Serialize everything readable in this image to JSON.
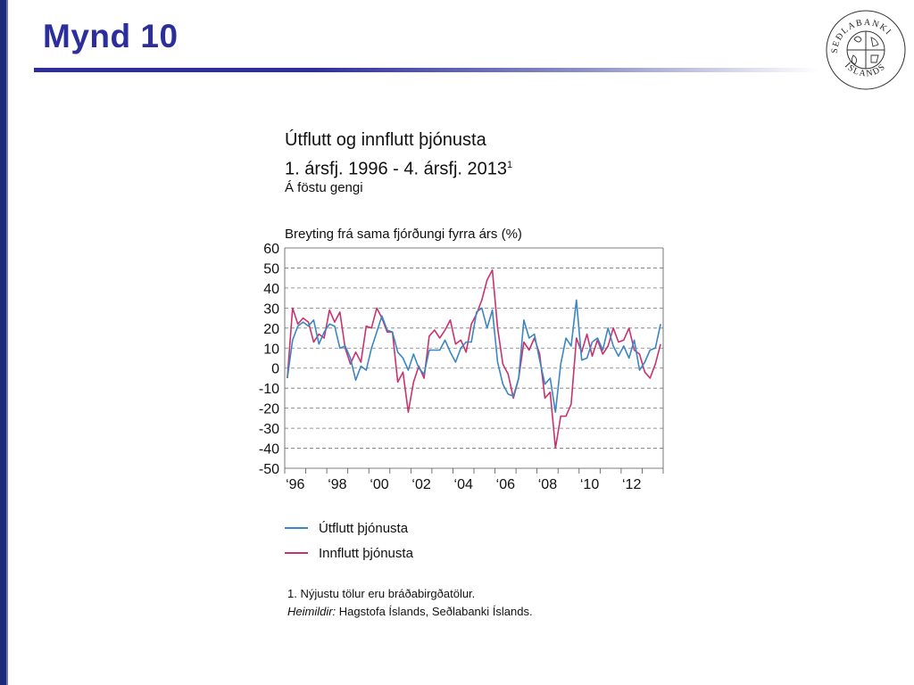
{
  "slide": {
    "title": "Mynd 10",
    "logo_text": "SEÐLABANKI ÍSLANDS"
  },
  "chart_data": {
    "type": "line",
    "title": "Útflutt og innflutt þjónusta",
    "title_line2": "1. ársfj. 1996 - 4. ársfj. 2013",
    "title_line2_sup": "1",
    "subtitle": "Á föstu gengi",
    "ylabel": "Breyting frá sama fjórðungi fyrra árs (%)",
    "ylim": [
      -50,
      60
    ],
    "yticks": [
      60,
      50,
      40,
      30,
      20,
      10,
      0,
      -10,
      -20,
      -30,
      -40,
      -50
    ],
    "x_tick_labels": [
      "‘96",
      "‘98",
      "‘00",
      "‘02",
      "‘04",
      "‘06",
      "‘08",
      "‘10",
      "‘12"
    ],
    "x_tick_years": [
      1996,
      1998,
      2000,
      2002,
      2004,
      2006,
      2008,
      2010,
      2012
    ],
    "x_start_year": 1996,
    "x_end_year": 2014,
    "grid": "dashed-horizontal",
    "legend_position": "below",
    "series": [
      {
        "name": "Útflutt þjónusta",
        "color": "#3b86c4",
        "values": [
          -5,
          14,
          21,
          23,
          21,
          24,
          12,
          18,
          22,
          21,
          10,
          11,
          5,
          -6,
          1,
          -1,
          10,
          18,
          26,
          19,
          18,
          8,
          5,
          -1,
          7,
          0,
          -3,
          9,
          9,
          9,
          14,
          8,
          3,
          10,
          13,
          13,
          28,
          30,
          20,
          29,
          3,
          -8,
          -13,
          -14,
          -5,
          24,
          15,
          17,
          4,
          -8,
          -5,
          -22,
          2,
          15,
          11,
          34,
          4,
          5,
          13,
          15,
          9,
          20,
          11,
          6,
          11,
          5,
          14,
          -1,
          3,
          9,
          10,
          22
        ]
      },
      {
        "name": "Innflutt þjónusta",
        "color": "#c8336f",
        "values": [
          -5,
          30,
          22,
          25,
          23,
          13,
          17,
          15,
          29,
          23,
          28,
          10,
          2,
          8,
          3,
          21,
          20,
          30,
          25,
          18,
          18,
          -7,
          -2,
          -22,
          -7,
          1,
          -5,
          16,
          19,
          15,
          19,
          24,
          12,
          14,
          8,
          22,
          27,
          34,
          44,
          49,
          20,
          2,
          -3,
          -15,
          -5,
          13,
          9,
          15,
          7,
          -15,
          -12,
          -40,
          -24,
          -24,
          -18,
          15,
          8,
          17,
          6,
          14,
          7,
          11,
          20,
          13,
          14,
          20,
          9,
          7,
          -2,
          -5,
          2,
          12
        ]
      }
    ]
  },
  "legend": {
    "items": [
      {
        "label": "Útflutt þjónusta",
        "color": "#3b86c4"
      },
      {
        "label": "Innflutt þjónusta",
        "color": "#c8336f"
      }
    ]
  },
  "footnote": {
    "note": "1. Nýjustu tölur eru bráðabirgðatölur.",
    "source_label": "Heimildir:",
    "source_text": " Hagstofa Íslands, Seðlabanki Íslands."
  }
}
